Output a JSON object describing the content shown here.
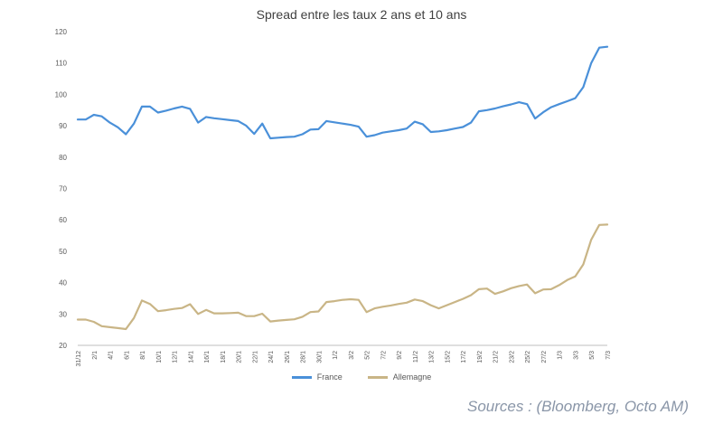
{
  "chart_data": {
    "type": "line",
    "title": "Spread entre les taux 2 ans et 10 ans",
    "ylim": [
      20,
      120
    ],
    "yticks": [
      20,
      30,
      40,
      50,
      60,
      70,
      80,
      90,
      100,
      110,
      120
    ],
    "grid": false,
    "legend": "bottom-center",
    "x": [
      "31/12",
      "1/1",
      "2/1",
      "3/1",
      "4/1",
      "5/1",
      "6/1",
      "7/1",
      "8/1",
      "9/1",
      "10/1",
      "11/1",
      "12/1",
      "13/1",
      "14/1",
      "15/1",
      "16/1",
      "17/1",
      "18/1",
      "19/1",
      "20/1",
      "21/1",
      "22/1",
      "23/1",
      "24/1",
      "25/1",
      "26/1",
      "27/1",
      "28/1",
      "29/1",
      "30/1",
      "31/1",
      "1/2",
      "2/2",
      "3/2",
      "4/2",
      "5/2",
      "6/2",
      "7/2",
      "8/2",
      "9/2",
      "10/2",
      "11/2",
      "12/2",
      "13/2",
      "14/2",
      "15/2",
      "16/2",
      "17/2",
      "18/2",
      "19/2",
      "20/2",
      "21/2",
      "22/2",
      "23/2",
      "24/2",
      "25/2",
      "26/2",
      "27/2",
      "28/2",
      "1/3",
      "2/3",
      "3/3",
      "4/3",
      "5/3",
      "6/3",
      "7/3"
    ],
    "xtick_labels": [
      "31/12",
      "2/1",
      "4/1",
      "6/1",
      "8/1",
      "10/1",
      "12/1",
      "14/1",
      "16/1",
      "18/1",
      "20/1",
      "22/1",
      "24/1",
      "26/1",
      "28/1",
      "30/1",
      "1/2",
      "3/2",
      "5/2",
      "7/2",
      "9/2",
      "11/2",
      "13/2",
      "15/2",
      "17/2",
      "19/2",
      "21/2",
      "23/2",
      "25/2",
      "27/2",
      "1/3",
      "3/3",
      "5/3",
      "7/3"
    ],
    "series": [
      {
        "name": "France",
        "color": "#4a90d9",
        "values": [
          92,
          92,
          93.5,
          93,
          91,
          89.5,
          87.3,
          90.7,
          96.1,
          96.1,
          94.2,
          94.8,
          95.5,
          96.1,
          95.4,
          91,
          92.8,
          92.4,
          92.1,
          91.8,
          91.5,
          90,
          87.4,
          90.7,
          86,
          86.2,
          86.4,
          86.5,
          87.3,
          88.8,
          88.9,
          91.5,
          91.1,
          90.7,
          90.3,
          89.7,
          86.5,
          87,
          87.8,
          88.2,
          88.6,
          89.1,
          91.3,
          90.5,
          88,
          88.2,
          88.6,
          89.1,
          89.6,
          91,
          94.6,
          95,
          95.5,
          96.2,
          96.8,
          97.5,
          96.9,
          92.3,
          94.3,
          95.9,
          96.9,
          97.8,
          98.8,
          102.3,
          110,
          114.9,
          115.2
        ]
      },
      {
        "name": "Allemagne",
        "color": "#c9b586",
        "values": [
          28.2,
          28.2,
          27.5,
          26.1,
          25.8,
          25.5,
          25.2,
          28.7,
          34.3,
          33.2,
          30.9,
          31.2,
          31.6,
          31.9,
          33.1,
          30,
          31.3,
          30.2,
          30.2,
          30.3,
          30.4,
          29.3,
          29.3,
          30.1,
          27.6,
          27.9,
          28.1,
          28.3,
          29.1,
          30.6,
          30.8,
          33.8,
          34.1,
          34.5,
          34.7,
          34.5,
          30.6,
          31.8,
          32.3,
          32.7,
          33.2,
          33.6,
          34.6,
          34.1,
          32.8,
          31.8,
          32.8,
          33.8,
          34.8,
          36,
          37.9,
          38.1,
          36.4,
          37.2,
          38.2,
          38.9,
          39.4,
          36.6,
          37.8,
          37.9,
          39.2,
          40.8,
          42,
          45.8,
          53.7,
          58.4,
          58.5
        ]
      }
    ]
  },
  "source_text": "Sources : (Bloomberg, Octo AM)"
}
